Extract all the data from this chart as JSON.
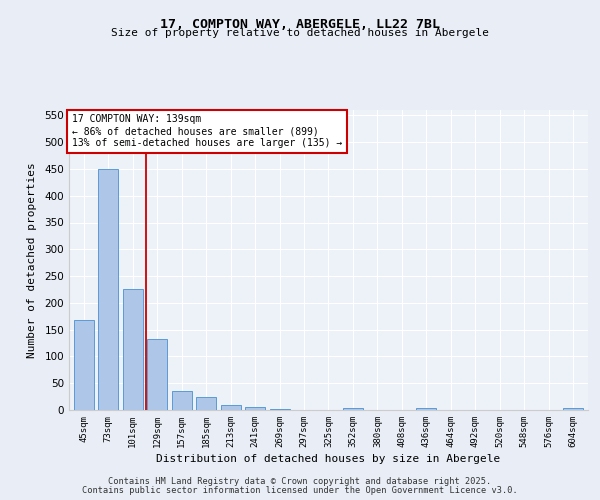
{
  "title1": "17, COMPTON WAY, ABERGELE, LL22 7BL",
  "title2": "Size of property relative to detached houses in Abergele",
  "xlabel": "Distribution of detached houses by size in Abergele",
  "ylabel": "Number of detached properties",
  "categories": [
    "45sqm",
    "73sqm",
    "101sqm",
    "129sqm",
    "157sqm",
    "185sqm",
    "213sqm",
    "241sqm",
    "269sqm",
    "297sqm",
    "325sqm",
    "352sqm",
    "380sqm",
    "408sqm",
    "436sqm",
    "464sqm",
    "492sqm",
    "520sqm",
    "548sqm",
    "576sqm",
    "604sqm"
  ],
  "values": [
    168,
    450,
    225,
    133,
    36,
    25,
    10,
    5,
    2,
    0,
    0,
    4,
    0,
    0,
    4,
    0,
    0,
    0,
    0,
    0,
    4
  ],
  "bar_color": "#aec6e8",
  "bar_edge_color": "#5b9bd5",
  "bar_width": 0.82,
  "red_line_x": 2.55,
  "annotation_text": "17 COMPTON WAY: 139sqm\n← 86% of detached houses are smaller (899)\n13% of semi-detached houses are larger (135) →",
  "annotation_box_color": "#ffffff",
  "annotation_border_color": "#cc0000",
  "ylim": [
    0,
    560
  ],
  "yticks": [
    0,
    50,
    100,
    150,
    200,
    250,
    300,
    350,
    400,
    450,
    500,
    550
  ],
  "bg_color": "#e8edf6",
  "plot_bg_color": "#edf2f8",
  "grid_color": "#ffffff",
  "footer1": "Contains HM Land Registry data © Crown copyright and database right 2025.",
  "footer2": "Contains public sector information licensed under the Open Government Licence v3.0."
}
